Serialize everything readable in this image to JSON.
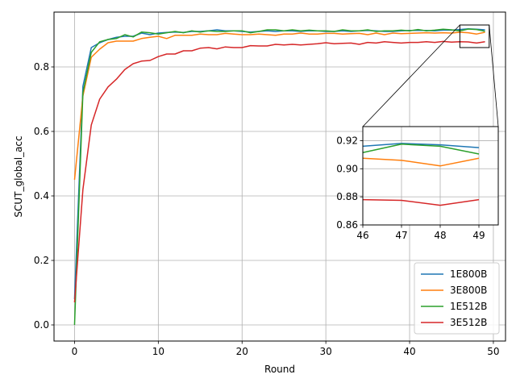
{
  "chart_data": {
    "type": "line",
    "title": "",
    "xlabel": "Round",
    "ylabel": "SCUT_global_acc",
    "xlim": [
      -2.45,
      51.45
    ],
    "ylim": [
      -0.05,
      0.97
    ],
    "x_ticks": [
      0,
      10,
      20,
      30,
      40,
      50
    ],
    "y_ticks": [
      0.0,
      0.2,
      0.4,
      0.6,
      0.8
    ],
    "grid": true,
    "legend_placement": "lower-right",
    "x": [
      0,
      1,
      2,
      3,
      4,
      5,
      6,
      7,
      8,
      9,
      10,
      11,
      12,
      13,
      14,
      15,
      16,
      17,
      18,
      19,
      20,
      21,
      22,
      23,
      24,
      25,
      26,
      27,
      28,
      29,
      30,
      31,
      32,
      33,
      34,
      35,
      36,
      37,
      38,
      39,
      40,
      41,
      42,
      43,
      44,
      45,
      46,
      47,
      48,
      49
    ],
    "series": [
      {
        "name": "1E800B",
        "color": "#1f77b4",
        "values": [
          0.08,
          0.74,
          0.86,
          0.875,
          0.885,
          0.892,
          0.895,
          0.895,
          0.905,
          0.9,
          0.905,
          0.907,
          0.908,
          0.907,
          0.91,
          0.91,
          0.912,
          0.915,
          0.912,
          0.912,
          0.91,
          0.908,
          0.91,
          0.912,
          0.91,
          0.912,
          0.912,
          0.91,
          0.912,
          0.912,
          0.91,
          0.91,
          0.912,
          0.91,
          0.912,
          0.913,
          0.912,
          0.91,
          0.91,
          0.912,
          0.913,
          0.913,
          0.913,
          0.912,
          0.914,
          0.914,
          0.916,
          0.918,
          0.917,
          0.915
        ]
      },
      {
        "name": "3E800B",
        "color": "#ff7f0e",
        "values": [
          0.45,
          0.71,
          0.83,
          0.855,
          0.875,
          0.88,
          0.88,
          0.88,
          0.888,
          0.892,
          0.895,
          0.888,
          0.898,
          0.898,
          0.898,
          0.902,
          0.9,
          0.9,
          0.904,
          0.902,
          0.9,
          0.9,
          0.902,
          0.9,
          0.898,
          0.902,
          0.902,
          0.905,
          0.902,
          0.902,
          0.904,
          0.904,
          0.902,
          0.903,
          0.904,
          0.9,
          0.905,
          0.9,
          0.905,
          0.903,
          0.904,
          0.905,
          0.906,
          0.905,
          0.906,
          0.905,
          0.9075,
          0.906,
          0.902,
          0.9075
        ]
      },
      {
        "name": "1E512B",
        "color": "#2ca02c",
        "values": [
          0.0,
          0.72,
          0.845,
          0.878,
          0.885,
          0.888,
          0.9,
          0.893,
          0.908,
          0.906,
          0.902,
          0.906,
          0.91,
          0.906,
          0.912,
          0.908,
          0.912,
          0.91,
          0.91,
          0.912,
          0.912,
          0.906,
          0.91,
          0.915,
          0.915,
          0.912,
          0.915,
          0.912,
          0.914,
          0.912,
          0.912,
          0.91,
          0.915,
          0.912,
          0.912,
          0.915,
          0.91,
          0.912,
          0.912,
          0.914,
          0.912,
          0.916,
          0.912,
          0.914,
          0.917,
          0.915,
          0.9115,
          0.9175,
          0.916,
          0.9105
        ]
      },
      {
        "name": "3E512B",
        "color": "#d62728",
        "values": [
          0.07,
          0.42,
          0.62,
          0.7,
          0.738,
          0.762,
          0.792,
          0.81,
          0.818,
          0.82,
          0.832,
          0.84,
          0.84,
          0.85,
          0.85,
          0.858,
          0.86,
          0.856,
          0.862,
          0.86,
          0.86,
          0.866,
          0.865,
          0.865,
          0.87,
          0.868,
          0.87,
          0.868,
          0.87,
          0.872,
          0.875,
          0.872,
          0.873,
          0.874,
          0.87,
          0.876,
          0.874,
          0.878,
          0.876,
          0.874,
          0.876,
          0.876,
          0.878,
          0.876,
          0.879,
          0.877,
          0.878,
          0.8775,
          0.874,
          0.878
        ]
      }
    ],
    "inset": {
      "xlim": [
        46,
        49.5
      ],
      "ylim": [
        0.86,
        0.93
      ],
      "x_ticks": [
        46,
        47,
        48,
        49
      ],
      "y_ticks": [
        0.86,
        0.88,
        0.9,
        0.92
      ],
      "x": [
        46,
        47,
        48,
        49
      ]
    }
  }
}
